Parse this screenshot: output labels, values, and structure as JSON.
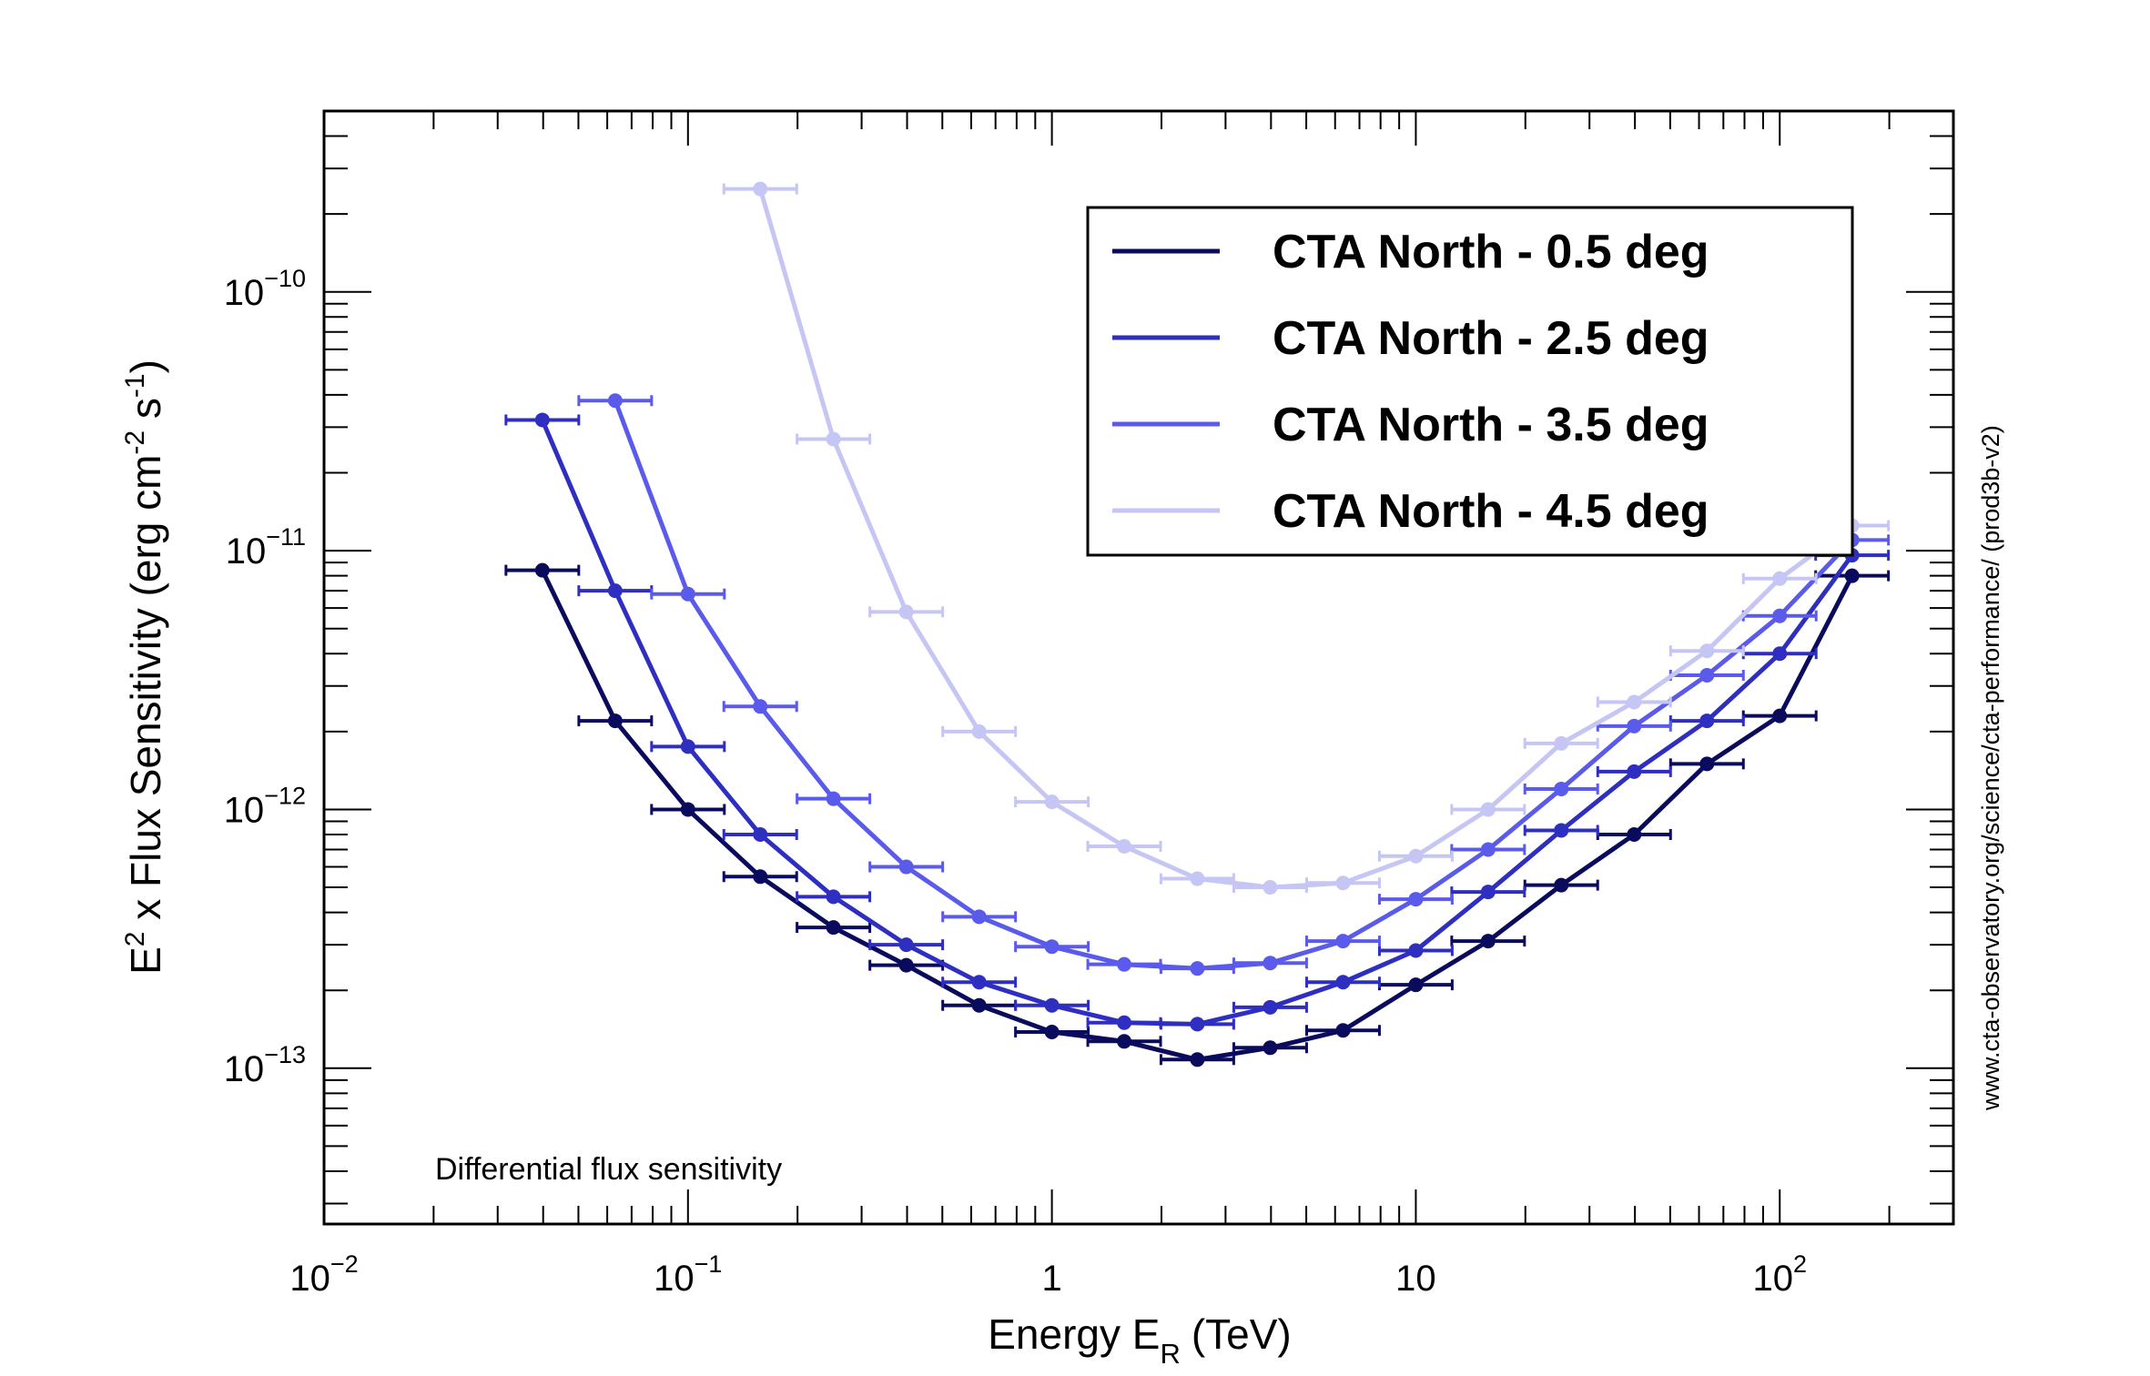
{
  "chart_data": {
    "type": "line",
    "xlabel": "Energy E",
    "xlabel_sub": "R",
    "xlabel_unit": "(TeV)",
    "ylabel": "E",
    "ylabel_sup": "2",
    "ylabel_rest": " x Flux Sensitivity (erg cm",
    "ylabel_sup2": "-2",
    "ylabel_rest2": " s",
    "ylabel_sup3": "-1",
    "ylabel_end": ")",
    "x_scale": "log",
    "y_scale": "log",
    "xlim": [
      0.01,
      300
    ],
    "ylim": [
      2.5e-14,
      5e-10
    ],
    "x_ticks": [
      {
        "base": "10",
        "exp": "−2",
        "value": 0.01
      },
      {
        "base": "10",
        "exp": "−1",
        "value": 0.1
      },
      {
        "base": "1",
        "exp": "",
        "value": 1
      },
      {
        "base": "10",
        "exp": "",
        "value": 10
      },
      {
        "base": "10",
        "exp": "2",
        "value": 100
      }
    ],
    "y_ticks": [
      {
        "base": "10",
        "exp": "−13",
        "value": 1e-13
      },
      {
        "base": "10",
        "exp": "−12",
        "value": 1e-12
      },
      {
        "base": "10",
        "exp": "−11",
        "value": 1e-11
      },
      {
        "base": "10",
        "exp": "−10",
        "value": 1e-10
      }
    ],
    "grid": false,
    "legend_position": "top-right",
    "annotation": "Differential flux sensitivity",
    "side_text": "www.cta-observatory.org/science/cta-performance/ (prod3b-v2)",
    "error_bar_half_width_log10": 0.1,
    "series": [
      {
        "name": "CTA North - 0.5 deg",
        "color": "#0b0b5e",
        "x": [
          0.0398,
          0.0631,
          0.1,
          0.158,
          0.251,
          0.398,
          0.631,
          1.0,
          1.58,
          2.51,
          3.98,
          6.31,
          10,
          15.8,
          25.1,
          39.8,
          63.1,
          100,
          158
        ],
        "y": [
          8.4e-12,
          2.2e-12,
          1e-12,
          5.5e-13,
          3.5e-13,
          2.5e-13,
          1.75e-13,
          1.38e-13,
          1.27e-13,
          1.08e-13,
          1.2e-13,
          1.4e-13,
          2.1e-13,
          3.1e-13,
          5.1e-13,
          8e-13,
          1.5e-12,
          2.3e-12,
          8e-12
        ]
      },
      {
        "name": "CTA North - 2.5 deg",
        "color": "#2e2ec0",
        "x": [
          0.0398,
          0.0631,
          0.1,
          0.158,
          0.251,
          0.398,
          0.631,
          1.0,
          1.58,
          2.51,
          3.98,
          6.31,
          10,
          15.8,
          25.1,
          39.8,
          63.1,
          100,
          158
        ],
        "y": [
          3.2e-11,
          7e-12,
          1.75e-12,
          8e-13,
          4.6e-13,
          3e-13,
          2.15e-13,
          1.75e-13,
          1.5e-13,
          1.48e-13,
          1.72e-13,
          2.15e-13,
          2.85e-13,
          4.8e-13,
          8.3e-13,
          1.4e-12,
          2.2e-12,
          4e-12,
          9.6e-12
        ]
      },
      {
        "name": "CTA North - 3.5 deg",
        "color": "#5a5aeb",
        "x": [
          0.0631,
          0.1,
          0.158,
          0.251,
          0.398,
          0.631,
          1.0,
          1.58,
          2.51,
          3.98,
          6.31,
          10,
          15.8,
          25.1,
          39.8,
          63.1,
          100,
          158
        ],
        "y": [
          3.8e-11,
          6.8e-12,
          2.5e-12,
          1.1e-12,
          6e-13,
          3.85e-13,
          2.95e-13,
          2.52e-13,
          2.43e-13,
          2.55e-13,
          3.1e-13,
          4.5e-13,
          7e-13,
          1.2e-12,
          2.1e-12,
          3.3e-12,
          5.6e-12,
          1.1e-11
        ]
      },
      {
        "name": "CTA North - 4.5 deg",
        "color": "#c6c6f5",
        "x": [
          0.158,
          0.251,
          0.398,
          0.631,
          1.0,
          1.58,
          2.51,
          3.98,
          6.31,
          10,
          15.8,
          25.1,
          39.8,
          63.1,
          100,
          158
        ],
        "y": [
          2.5e-10,
          2.7e-11,
          5.8e-12,
          2e-12,
          1.07e-12,
          7.2e-13,
          5.4e-13,
          5e-13,
          5.2e-13,
          6.6e-13,
          1e-12,
          1.8e-12,
          2.6e-12,
          4.1e-12,
          7.8e-12,
          1.25e-11
        ]
      }
    ]
  }
}
